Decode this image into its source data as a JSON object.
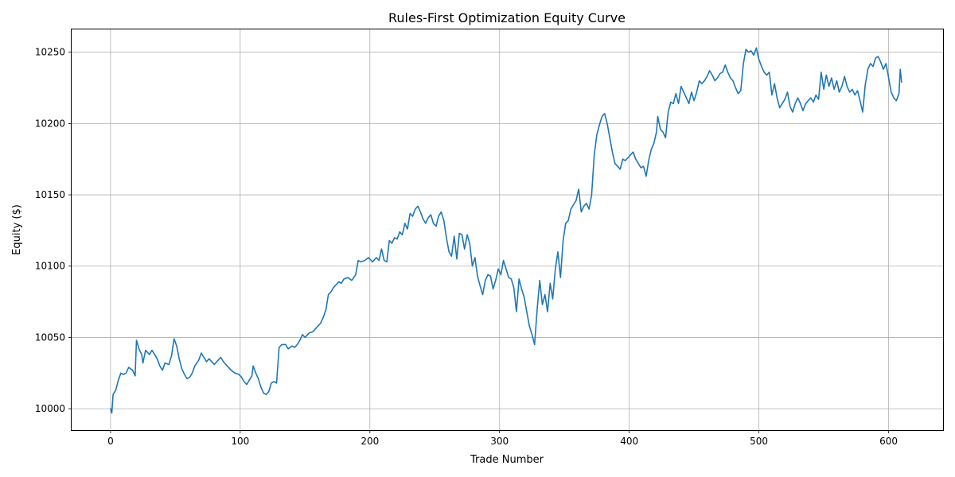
{
  "chart_data": {
    "type": "line",
    "title": "Rules-First Optimization Equity Curve",
    "xlabel": "Trade Number",
    "ylabel": "Equity ($)",
    "xlim": [
      -30,
      642
    ],
    "ylim": [
      9985,
      10266
    ],
    "xticks": [
      0,
      100,
      200,
      300,
      400,
      500,
      600
    ],
    "yticks": [
      10000,
      10050,
      10100,
      10150,
      10200,
      10250
    ],
    "grid": true,
    "series": [
      {
        "color": "#1f77b4",
        "points": [
          [
            0,
            10000
          ],
          [
            1,
            9997
          ],
          [
            2,
            10010
          ],
          [
            4,
            10013
          ],
          [
            6,
            10020
          ],
          [
            8,
            10025
          ],
          [
            10,
            10024
          ],
          [
            12,
            10025
          ],
          [
            14,
            10029
          ],
          [
            17,
            10027
          ],
          [
            19,
            10023
          ],
          [
            20,
            10048
          ],
          [
            22,
            10042
          ],
          [
            24,
            10038
          ],
          [
            25,
            10032
          ],
          [
            27,
            10041
          ],
          [
            30,
            10038
          ],
          [
            32,
            10041
          ],
          [
            34,
            10038
          ],
          [
            36,
            10035
          ],
          [
            38,
            10030
          ],
          [
            40,
            10027
          ],
          [
            42,
            10032
          ],
          [
            45,
            10031
          ],
          [
            47,
            10037
          ],
          [
            49,
            10049
          ],
          [
            51,
            10044
          ],
          [
            53,
            10035
          ],
          [
            55,
            10028
          ],
          [
            57,
            10024
          ],
          [
            59,
            10021
          ],
          [
            61,
            10022
          ],
          [
            63,
            10025
          ],
          [
            65,
            10030
          ],
          [
            68,
            10034
          ],
          [
            70,
            10039
          ],
          [
            72,
            10036
          ],
          [
            74,
            10033
          ],
          [
            76,
            10035
          ],
          [
            78,
            10033
          ],
          [
            80,
            10031
          ],
          [
            83,
            10034
          ],
          [
            85,
            10036
          ],
          [
            87,
            10033
          ],
          [
            90,
            10030
          ],
          [
            93,
            10027
          ],
          [
            96,
            10025
          ],
          [
            99,
            10024
          ],
          [
            101,
            10022
          ],
          [
            103,
            10019
          ],
          [
            105,
            10017
          ],
          [
            107,
            10020
          ],
          [
            109,
            10023
          ],
          [
            110,
            10030
          ],
          [
            112,
            10025
          ],
          [
            114,
            10021
          ],
          [
            116,
            10015
          ],
          [
            118,
            10011
          ],
          [
            120,
            10010
          ],
          [
            122,
            10012
          ],
          [
            124,
            10018
          ],
          [
            126,
            10019
          ],
          [
            128,
            10018
          ],
          [
            130,
            10043
          ],
          [
            132,
            10045
          ],
          [
            135,
            10045
          ],
          [
            137,
            10042
          ],
          [
            140,
            10044
          ],
          [
            142,
            10043
          ],
          [
            144,
            10045
          ],
          [
            146,
            10048
          ],
          [
            148,
            10052
          ],
          [
            150,
            10050
          ],
          [
            153,
            10053
          ],
          [
            156,
            10054
          ],
          [
            158,
            10056
          ],
          [
            160,
            10058
          ],
          [
            162,
            10060
          ],
          [
            164,
            10064
          ],
          [
            166,
            10069
          ],
          [
            168,
            10080
          ],
          [
            170,
            10082
          ],
          [
            172,
            10085
          ],
          [
            174,
            10087
          ],
          [
            176,
            10089
          ],
          [
            178,
            10088
          ],
          [
            180,
            10091
          ],
          [
            183,
            10092
          ],
          [
            186,
            10090
          ],
          [
            189,
            10094
          ],
          [
            191,
            10104
          ],
          [
            193,
            10103
          ],
          [
            196,
            10104
          ],
          [
            199,
            10106
          ],
          [
            202,
            10103
          ],
          [
            205,
            10106
          ],
          [
            207,
            10104
          ],
          [
            209,
            10112
          ],
          [
            211,
            10104
          ],
          [
            213,
            10103
          ],
          [
            215,
            10118
          ],
          [
            217,
            10116
          ],
          [
            219,
            10120
          ],
          [
            221,
            10119
          ],
          [
            223,
            10124
          ],
          [
            225,
            10122
          ],
          [
            227,
            10130
          ],
          [
            229,
            10126
          ],
          [
            231,
            10137
          ],
          [
            233,
            10135
          ],
          [
            235,
            10140
          ],
          [
            237,
            10142
          ],
          [
            239,
            10138
          ],
          [
            241,
            10133
          ],
          [
            243,
            10130
          ],
          [
            245,
            10134
          ],
          [
            247,
            10136
          ],
          [
            249,
            10130
          ],
          [
            251,
            10128
          ],
          [
            253,
            10135
          ],
          [
            255,
            10138
          ],
          [
            257,
            10132
          ],
          [
            259,
            10120
          ],
          [
            261,
            10110
          ],
          [
            263,
            10107
          ],
          [
            265,
            10121
          ],
          [
            267,
            10105
          ],
          [
            269,
            10123
          ],
          [
            271,
            10122
          ],
          [
            273,
            10112
          ],
          [
            275,
            10122
          ],
          [
            277,
            10116
          ],
          [
            279,
            10100
          ],
          [
            281,
            10106
          ],
          [
            283,
            10093
          ],
          [
            285,
            10086
          ],
          [
            287,
            10080
          ],
          [
            289,
            10090
          ],
          [
            291,
            10094
          ],
          [
            293,
            10093
          ],
          [
            295,
            10084
          ],
          [
            297,
            10090
          ],
          [
            299,
            10098
          ],
          [
            301,
            10094
          ],
          [
            303,
            10104
          ],
          [
            305,
            10098
          ],
          [
            307,
            10092
          ],
          [
            309,
            10091
          ],
          [
            311,
            10085
          ],
          [
            313,
            10068
          ],
          [
            315,
            10091
          ],
          [
            317,
            10084
          ],
          [
            319,
            10078
          ],
          [
            321,
            10068
          ],
          [
            323,
            10058
          ],
          [
            325,
            10052
          ],
          [
            327,
            10045
          ],
          [
            329,
            10070
          ],
          [
            331,
            10090
          ],
          [
            333,
            10073
          ],
          [
            335,
            10080
          ],
          [
            337,
            10068
          ],
          [
            339,
            10088
          ],
          [
            341,
            10077
          ],
          [
            343,
            10098
          ],
          [
            345,
            10110
          ],
          [
            347,
            10092
          ],
          [
            349,
            10118
          ],
          [
            351,
            10130
          ],
          [
            353,
            10132
          ],
          [
            355,
            10140
          ],
          [
            357,
            10143
          ],
          [
            359,
            10146
          ],
          [
            361,
            10154
          ],
          [
            363,
            10138
          ],
          [
            365,
            10142
          ],
          [
            367,
            10144
          ],
          [
            369,
            10140
          ],
          [
            371,
            10150
          ],
          [
            373,
            10178
          ],
          [
            375,
            10192
          ],
          [
            377,
            10199
          ],
          [
            379,
            10205
          ],
          [
            381,
            10207
          ],
          [
            383,
            10200
          ],
          [
            385,
            10190
          ],
          [
            387,
            10180
          ],
          [
            389,
            10172
          ],
          [
            391,
            10170
          ],
          [
            393,
            10168
          ],
          [
            395,
            10175
          ],
          [
            397,
            10174
          ],
          [
            399,
            10176
          ],
          [
            401,
            10178
          ],
          [
            403,
            10180
          ],
          [
            405,
            10175
          ],
          [
            407,
            10172
          ],
          [
            409,
            10169
          ],
          [
            411,
            10170
          ],
          [
            413,
            10163
          ],
          [
            415,
            10174
          ],
          [
            417,
            10182
          ],
          [
            419,
            10186
          ],
          [
            421,
            10194
          ],
          [
            422,
            10205
          ],
          [
            424,
            10196
          ],
          [
            426,
            10194
          ],
          [
            428,
            10190
          ],
          [
            430,
            10208
          ],
          [
            432,
            10215
          ],
          [
            434,
            10214
          ],
          [
            436,
            10221
          ],
          [
            438,
            10214
          ],
          [
            440,
            10226
          ],
          [
            442,
            10222
          ],
          [
            444,
            10218
          ],
          [
            446,
            10214
          ],
          [
            448,
            10222
          ],
          [
            450,
            10216
          ],
          [
            452,
            10222
          ],
          [
            454,
            10230
          ],
          [
            456,
            10228
          ],
          [
            458,
            10230
          ],
          [
            460,
            10233
          ],
          [
            462,
            10237
          ],
          [
            464,
            10234
          ],
          [
            466,
            10230
          ],
          [
            468,
            10232
          ],
          [
            470,
            10235
          ],
          [
            472,
            10236
          ],
          [
            474,
            10241
          ],
          [
            476,
            10236
          ],
          [
            478,
            10232
          ],
          [
            480,
            10230
          ],
          [
            482,
            10225
          ],
          [
            484,
            10221
          ],
          [
            486,
            10223
          ],
          [
            488,
            10242
          ],
          [
            490,
            10252
          ],
          [
            492,
            10250
          ],
          [
            494,
            10251
          ],
          [
            496,
            10248
          ],
          [
            498,
            10253
          ],
          [
            500,
            10245
          ],
          [
            502,
            10240
          ],
          [
            504,
            10236
          ],
          [
            506,
            10234
          ],
          [
            508,
            10236
          ],
          [
            510,
            10220
          ],
          [
            512,
            10228
          ],
          [
            514,
            10218
          ],
          [
            516,
            10211
          ],
          [
            518,
            10214
          ],
          [
            520,
            10217
          ],
          [
            522,
            10222
          ],
          [
            524,
            10212
          ],
          [
            526,
            10208
          ],
          [
            528,
            10214
          ],
          [
            530,
            10218
          ],
          [
            532,
            10214
          ],
          [
            534,
            10209
          ],
          [
            536,
            10214
          ],
          [
            538,
            10216
          ],
          [
            540,
            10218
          ],
          [
            542,
            10215
          ],
          [
            544,
            10220
          ],
          [
            546,
            10217
          ],
          [
            548,
            10236
          ],
          [
            550,
            10224
          ],
          [
            552,
            10234
          ],
          [
            554,
            10226
          ],
          [
            556,
            10232
          ],
          [
            558,
            10224
          ],
          [
            560,
            10230
          ],
          [
            562,
            10222
          ],
          [
            564,
            10226
          ],
          [
            566,
            10233
          ],
          [
            568,
            10226
          ],
          [
            570,
            10222
          ],
          [
            572,
            10224
          ],
          [
            574,
            10220
          ],
          [
            576,
            10223
          ],
          [
            578,
            10216
          ],
          [
            580,
            10208
          ],
          [
            582,
            10227
          ],
          [
            584,
            10238
          ],
          [
            586,
            10242
          ],
          [
            588,
            10240
          ],
          [
            590,
            10246
          ],
          [
            592,
            10247
          ],
          [
            594,
            10243
          ],
          [
            596,
            10238
          ],
          [
            598,
            10242
          ],
          [
            600,
            10232
          ],
          [
            602,
            10222
          ],
          [
            604,
            10218
          ],
          [
            606,
            10216
          ],
          [
            608,
            10221
          ],
          [
            609,
            10238
          ],
          [
            610,
            10229
          ]
        ]
      }
    ]
  }
}
